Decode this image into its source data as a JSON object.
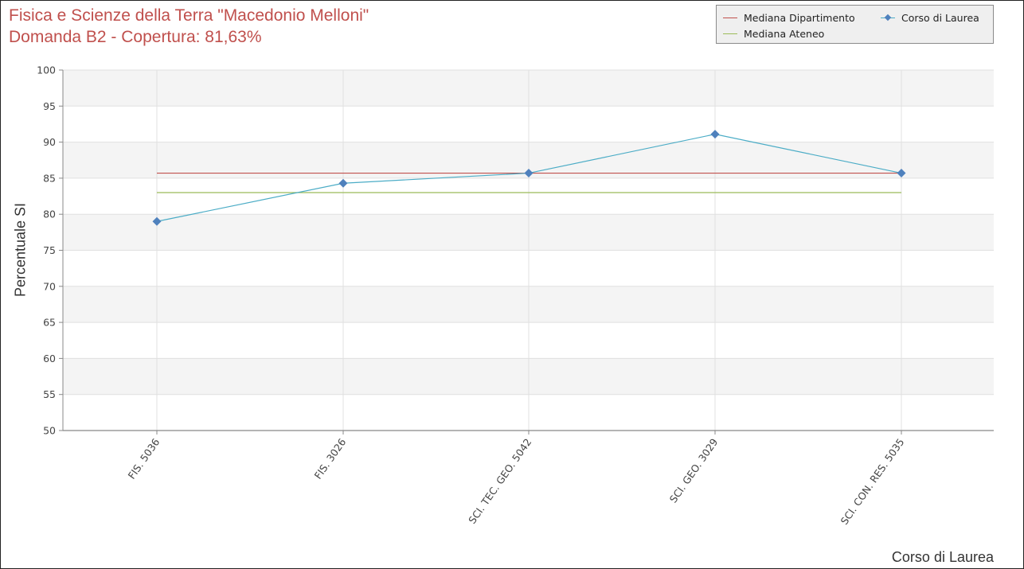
{
  "chart_data": {
    "type": "line",
    "title": "Fisica e Scienze della Terra \"Macedonio Melloni\"",
    "subtitle": "Domanda B2 - Copertura: 81,63%",
    "xlabel": "Corso di Laurea",
    "ylabel": "Percentuale SI",
    "categories": [
      "FIS. 5036",
      "FIS. 3026",
      "SCI. TEC. GEO. 5042",
      "SCI. GEO. 3029",
      "SCI. CON. RES. 5035"
    ],
    "ylim": [
      50,
      100
    ],
    "yticks": [
      "50",
      "55",
      "60",
      "65",
      "70",
      "75",
      "80",
      "85",
      "90",
      "95",
      "100"
    ],
    "grid": true,
    "legend_position": "top-right",
    "series": [
      {
        "name": "Mediana Dipartimento",
        "values": [
          85.7,
          85.7,
          85.7,
          85.7,
          85.7
        ],
        "color": "#c0504d",
        "marker": "none"
      },
      {
        "name": "Mediana Ateneo",
        "values": [
          83.0,
          83.0,
          83.0,
          83.0,
          83.0
        ],
        "color": "#9bbb59",
        "marker": "none"
      },
      {
        "name": "Corso di Laurea",
        "values": [
          79.0,
          84.3,
          85.7,
          91.1,
          85.7
        ],
        "color": "#4bacc6",
        "marker": "diamond",
        "marker_color": "#4f81bd"
      }
    ]
  }
}
